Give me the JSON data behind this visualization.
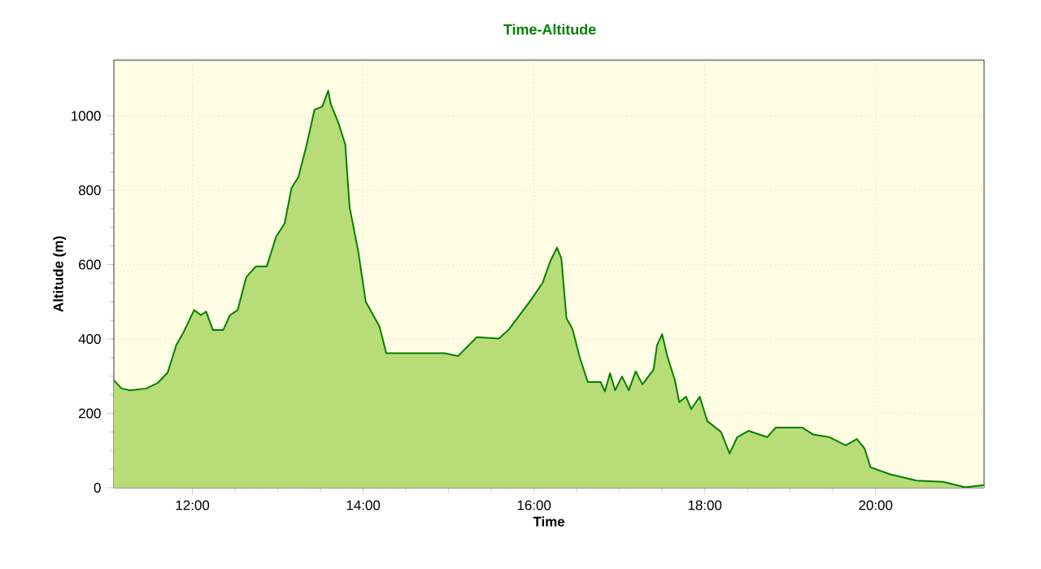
{
  "chart_data": {
    "type": "area",
    "title": "Time-Altitude",
    "xlabel": "Time",
    "ylabel": "Altitude (m)",
    "x": [
      11.08,
      11.17,
      11.27,
      11.46,
      11.59,
      11.71,
      11.81,
      11.9,
      12.02,
      12.1,
      12.16,
      12.24,
      12.36,
      12.44,
      12.53,
      12.63,
      12.74,
      12.87,
      12.98,
      13.08,
      13.16,
      13.24,
      13.33,
      13.43,
      13.52,
      13.59,
      13.62,
      13.71,
      13.79,
      13.84,
      13.94,
      14.03,
      14.1,
      14.19,
      14.27,
      14.57,
      14.95,
      15.11,
      15.33,
      15.59,
      15.71,
      15.97,
      16.1,
      16.19,
      16.27,
      16.32,
      16.38,
      16.45,
      16.54,
      16.63,
      16.78,
      16.83,
      16.89,
      16.95,
      17.03,
      17.11,
      17.19,
      17.27,
      17.4,
      17.44,
      17.5,
      17.56,
      17.65,
      17.7,
      17.78,
      17.84,
      17.94,
      18.03,
      18.19,
      18.29,
      18.38,
      18.51,
      18.73,
      18.83,
      19.14,
      19.27,
      19.46,
      19.65,
      19.78,
      19.87,
      19.94,
      20.17,
      20.48,
      20.79,
      21.05,
      21.27
    ],
    "series": [
      {
        "color": "#008000",
        "values": [
          289,
          267,
          262,
          267,
          281,
          310,
          383,
          420,
          478,
          464,
          474,
          424,
          424,
          464,
          478,
          566,
          595,
          595,
          675,
          711,
          806,
          835,
          915,
          1017,
          1025,
          1068,
          1032,
          981,
          923,
          755,
          638,
          500,
          471,
          434,
          362,
          362,
          362,
          354,
          405,
          401,
          427,
          507,
          551,
          609,
          646,
          617,
          456,
          427,
          347,
          284,
          284,
          259,
          308,
          262,
          299,
          262,
          313,
          278,
          318,
          383,
          413,
          354,
          289,
          230,
          245,
          211,
          245,
          179,
          150,
          92,
          136,
          153,
          136,
          162,
          162,
          143,
          136,
          114,
          131,
          106,
          55,
          36,
          19,
          16,
          1,
          7
        ]
      }
    ],
    "xlim": [
      11.08,
      21.27
    ],
    "ylim": [
      0,
      1150
    ],
    "xticks": [
      {
        "value": 12,
        "label": "12:00"
      },
      {
        "value": 14,
        "label": "14:00"
      },
      {
        "value": 16,
        "label": "16:00"
      },
      {
        "value": 18,
        "label": "18:00"
      },
      {
        "value": 20,
        "label": "20:00"
      }
    ],
    "yticks": [
      0,
      200,
      400,
      600,
      800,
      1000
    ],
    "grid": true
  }
}
